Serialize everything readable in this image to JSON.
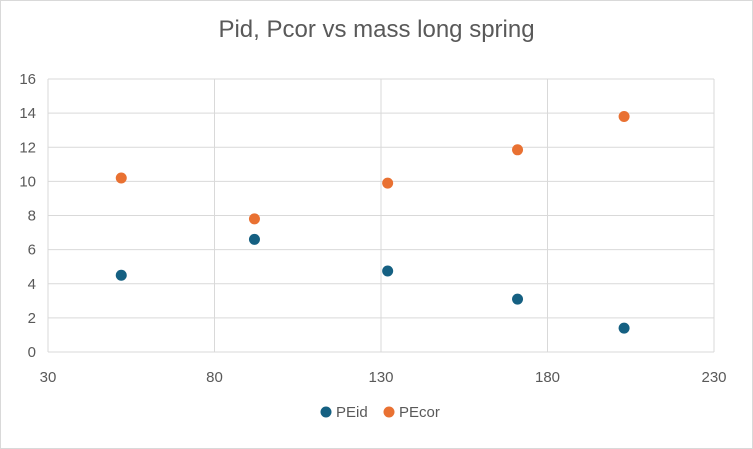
{
  "chart_data": {
    "type": "scatter",
    "title": "Pid, Pcor vs mass long spring",
    "xlabel": "",
    "ylabel": "",
    "xlim": [
      30,
      230
    ],
    "ylim": [
      0,
      16
    ],
    "x_ticks": [
      "30",
      "80",
      "130",
      "180",
      "230"
    ],
    "y_ticks": [
      "0",
      "2",
      "4",
      "6",
      "8",
      "10",
      "12",
      "14",
      "16"
    ],
    "grid": true,
    "legend_position": "bottom",
    "series": [
      {
        "name": "PEid",
        "color": "#156082",
        "points": [
          {
            "x": 52,
            "y": 4.5
          },
          {
            "x": 92,
            "y": 6.6
          },
          {
            "x": 132,
            "y": 4.75
          },
          {
            "x": 171,
            "y": 3.1
          },
          {
            "x": 203,
            "y": 1.4
          }
        ]
      },
      {
        "name": "PEcor",
        "color": "#E97132",
        "points": [
          {
            "x": 52,
            "y": 10.2
          },
          {
            "x": 92,
            "y": 7.8
          },
          {
            "x": 132,
            "y": 9.9
          },
          {
            "x": 171,
            "y": 11.85
          },
          {
            "x": 203,
            "y": 13.8
          }
        ]
      }
    ]
  }
}
